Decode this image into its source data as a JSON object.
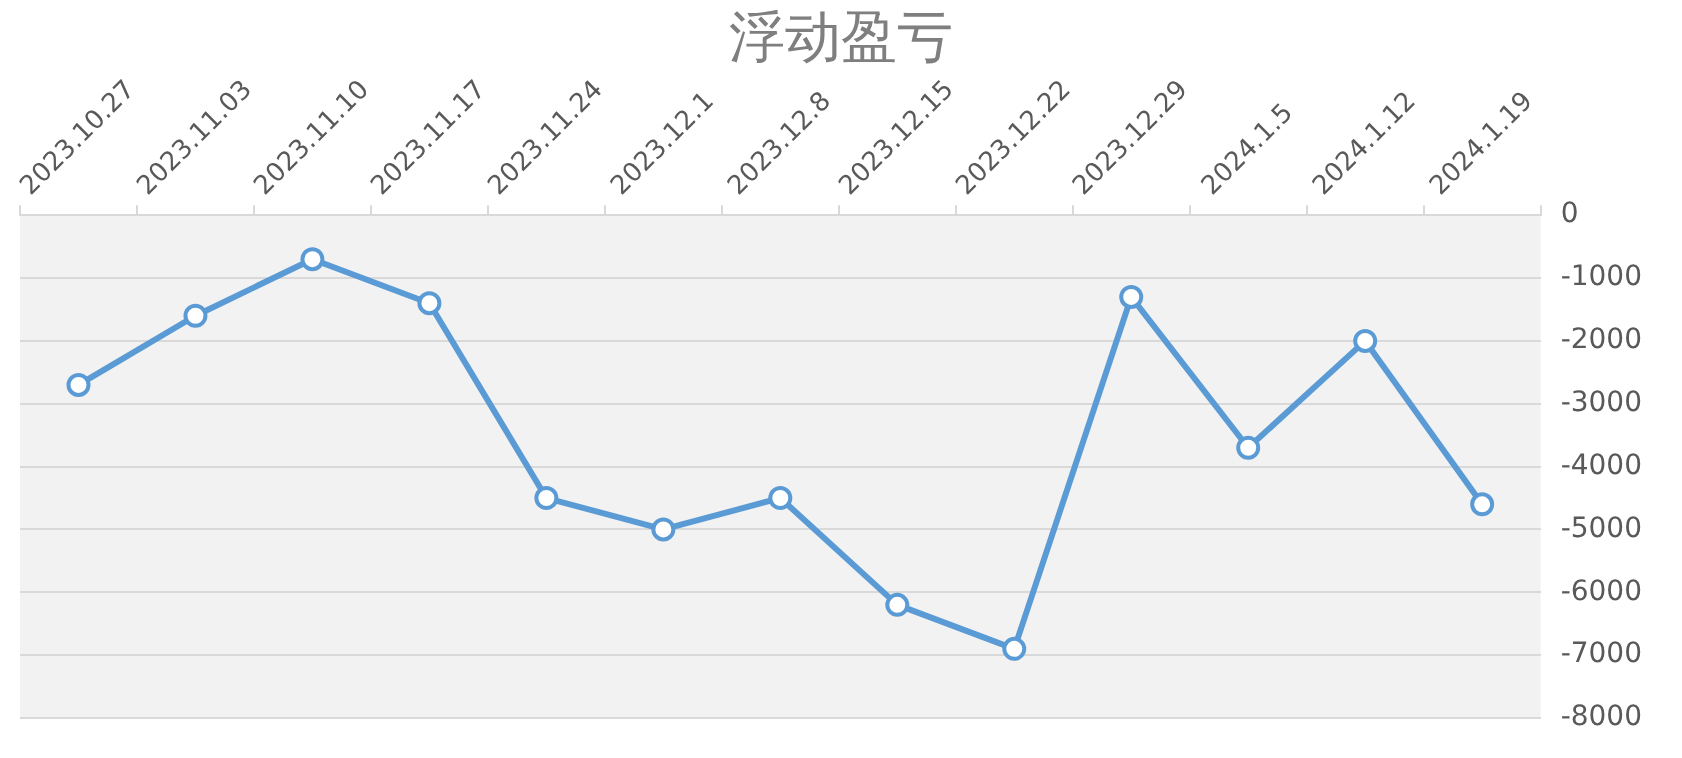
{
  "chart_data": {
    "type": "line",
    "title": "浮动盈亏",
    "categories": [
      "2023.10.27",
      "2023.11.03",
      "2023.11.10",
      "2023.11.17",
      "2023.11.24",
      "2023.12.1",
      "2023.12.8",
      "2023.12.15",
      "2023.12.22",
      "2023.12.29",
      "2024.1.5",
      "2024.1.12",
      "2024.1.19"
    ],
    "series": [
      {
        "color": "#5b9bd5",
        "values": [
          -2700,
          -1600,
          -700,
          -1400,
          -4500,
          -5000,
          -4500,
          -6200,
          -6900,
          -1300,
          -3700,
          -2000,
          -4600
        ]
      }
    ],
    "ylim": [
      -8000,
      0
    ],
    "yticks": [
      -8000,
      -7000,
      -6000,
      -5000,
      -4000,
      -3000,
      -2000,
      -1000,
      0
    ],
    "grid": "y",
    "legend": false,
    "marker": "circle",
    "line_style": "solid"
  }
}
